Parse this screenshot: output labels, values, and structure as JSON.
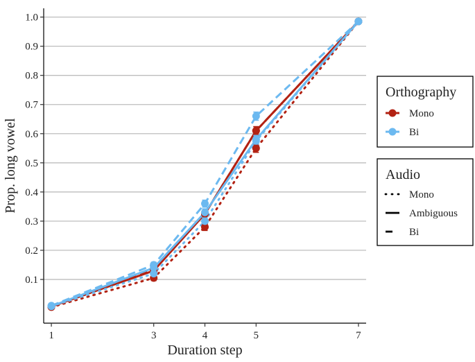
{
  "chart_data": {
    "type": "line",
    "title": "",
    "xlabel": "Duration step",
    "ylabel": "Prop. long vowel",
    "x_ticks": [
      1,
      3,
      4,
      5,
      7
    ],
    "x_tick_labels": [
      "1",
      "3",
      "4",
      "5",
      "7"
    ],
    "y_ticks": [
      0.1,
      0.2,
      0.3,
      0.4,
      0.5,
      0.6,
      0.7,
      0.8,
      0.9,
      1.0
    ],
    "y_tick_labels": [
      "0.1",
      "0.2",
      "0.3",
      "0.4",
      "0.5",
      "0.6",
      "0.7",
      "0.8",
      "0.9",
      "1.0"
    ],
    "xlim": [
      0.85,
      7.15
    ],
    "ylim": [
      -0.05,
      1.03
    ],
    "grid": "horizontal",
    "colors": {
      "Mono": "#b22213",
      "Bi": "#6cb9f0"
    },
    "series": [
      {
        "name": "Mono orthography / Mono audio",
        "orthography": "Mono",
        "audio": "Mono",
        "x": [
          1,
          3,
          4,
          5,
          7
        ],
        "values": [
          0.005,
          0.105,
          0.28,
          0.55,
          0.985
        ],
        "errors": [
          0.006,
          0.009,
          0.012,
          0.014,
          0.005
        ]
      },
      {
        "name": "Mono orthography / Ambiguous audio",
        "orthography": "Mono",
        "audio": "Ambiguous",
        "x": [
          1,
          3,
          4,
          5,
          7
        ],
        "values": [
          0.007,
          0.13,
          0.325,
          0.61,
          0.985
        ],
        "errors": [
          0.006,
          0.009,
          0.012,
          0.014,
          0.005
        ]
      },
      {
        "name": "Mono orthography / Bi audio",
        "orthography": "Mono",
        "audio": "Bi",
        "x": [
          1,
          3,
          4,
          5,
          7
        ],
        "values": [
          0.007,
          0.135,
          0.325,
          0.61,
          0.985
        ],
        "errors": [
          0.006,
          0.009,
          0.012,
          0.014,
          0.005
        ]
      },
      {
        "name": "Bi orthography / Mono audio",
        "orthography": "Bi",
        "audio": "Mono",
        "x": [
          1,
          3,
          4,
          5,
          7
        ],
        "values": [
          0.008,
          0.12,
          0.3,
          0.575,
          0.985
        ],
        "errors": [
          0.006,
          0.009,
          0.012,
          0.014,
          0.005
        ]
      },
      {
        "name": "Bi orthography / Ambiguous audio",
        "orthography": "Bi",
        "audio": "Ambiguous",
        "x": [
          1,
          3,
          4,
          5,
          7
        ],
        "values": [
          0.008,
          0.14,
          0.33,
          0.58,
          0.985
        ],
        "errors": [
          0.006,
          0.009,
          0.012,
          0.014,
          0.005
        ]
      },
      {
        "name": "Bi orthography / Bi audio",
        "orthography": "Bi",
        "audio": "Bi",
        "x": [
          1,
          3,
          4,
          5,
          7
        ],
        "values": [
          0.01,
          0.15,
          0.36,
          0.66,
          0.985
        ],
        "errors": [
          0.006,
          0.009,
          0.012,
          0.014,
          0.005
        ]
      }
    ],
    "legend": [
      {
        "title": "Orthography",
        "kind": "color",
        "entries": [
          {
            "label": "Mono",
            "key": "Mono"
          },
          {
            "label": "Bi",
            "key": "Bi"
          }
        ]
      },
      {
        "title": "Audio",
        "kind": "linetype",
        "entries": [
          {
            "label": "Mono",
            "key": "Mono"
          },
          {
            "label": "Ambiguous",
            "key": "Ambiguous"
          },
          {
            "label": "Bi",
            "key": "Bi"
          }
        ]
      }
    ],
    "legend_position": "right"
  }
}
